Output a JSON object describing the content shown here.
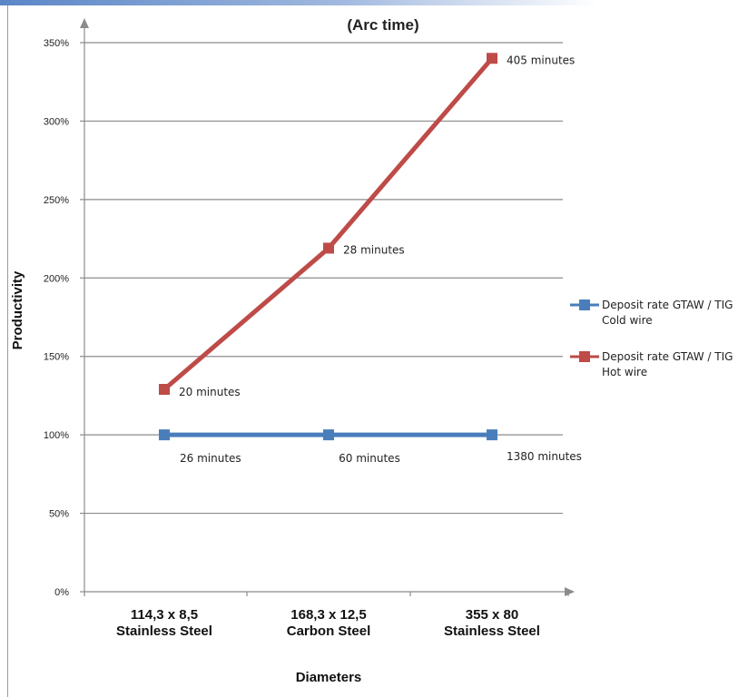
{
  "chart_data": {
    "type": "line",
    "title": "(Arc time)",
    "xlabel": "Diameters",
    "ylabel": "Productivity",
    "categories": [
      [
        "114,3 x 8,5",
        "Stainless Steel"
      ],
      [
        "168,3 x 12,5",
        "Carbon Steel"
      ],
      [
        "355 x 80",
        "Stainless Steel"
      ]
    ],
    "ylim": [
      0,
      350
    ],
    "yticks": [
      0,
      50,
      100,
      150,
      200,
      250,
      300,
      350
    ],
    "ytick_labels": [
      "0%",
      "50%",
      "100%",
      "150%",
      "200%",
      "250%",
      "300%",
      "350%"
    ],
    "grid": true,
    "legend_position": "right",
    "series": [
      {
        "name_lines": [
          "Deposit rate GTAW / TIG",
          "Cold wire"
        ],
        "color": "#4a7ebb",
        "values": [
          100,
          100,
          100
        ],
        "point_labels": [
          "26 minutes",
          "60 minutes",
          "1380 minutes"
        ]
      },
      {
        "name_lines": [
          "Deposit rate GTAW / TIG",
          "Hot wire"
        ],
        "color": "#be4b48",
        "values": [
          129,
          219,
          340
        ],
        "point_labels": [
          "20 minutes",
          "28 minutes",
          "405 minutes"
        ]
      }
    ]
  }
}
